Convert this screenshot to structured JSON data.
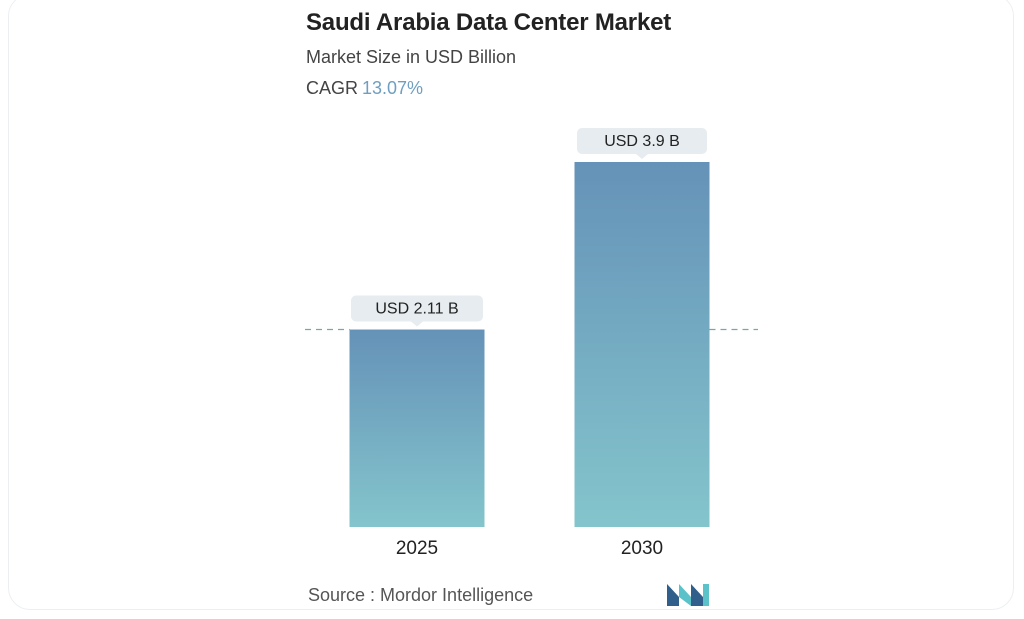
{
  "title": "Saudi Arabia Data Center Market",
  "subtitle": "Market Size in USD Billion",
  "cagr_label": "CAGR",
  "cagr_value": "13.07%",
  "source": "Source :  Mordor Intelligence",
  "colors": {
    "bar_top": "#6592b8",
    "bar_bottom": "#84c5cc",
    "label_bg": "#e6ecef",
    "dashed_line": "#7fa2ad",
    "cagr_accent": "#6f9fc0",
    "logo_dark": "#2f5f8a",
    "logo_light": "#5cc2c9"
  },
  "logo_icon": "mordor-intelligence-logo-icon",
  "chart_data": {
    "type": "bar",
    "title": "Saudi Arabia Data Center Market",
    "ylabel": "Market Size in USD Billion",
    "xlabel": "",
    "categories": [
      "2025",
      "2030"
    ],
    "values": [
      2.11,
      3.9
    ],
    "data_labels": [
      "USD 2.11 B",
      "USD 3.9 B"
    ],
    "ylim": [
      0,
      3.9
    ],
    "reference_line": 2.11,
    "grid": false,
    "legend": "none"
  }
}
